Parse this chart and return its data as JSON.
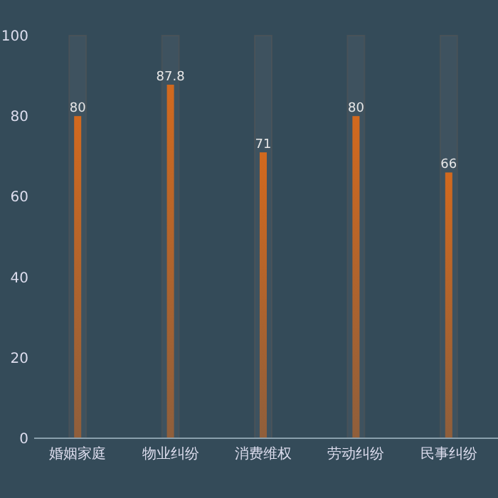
{
  "chart_data": {
    "type": "bar",
    "categories": [
      "婚姻家庭",
      "物业纠纷",
      "消费维权",
      "劳动纠纷",
      "民事纠纷"
    ],
    "values": [
      80,
      87.8,
      71,
      80,
      66
    ],
    "color": "#d2691e",
    "ylim": [
      0,
      100
    ],
    "yticks": [
      0,
      20,
      40,
      60,
      80,
      100
    ],
    "data_labels": true,
    "grid": false
  }
}
